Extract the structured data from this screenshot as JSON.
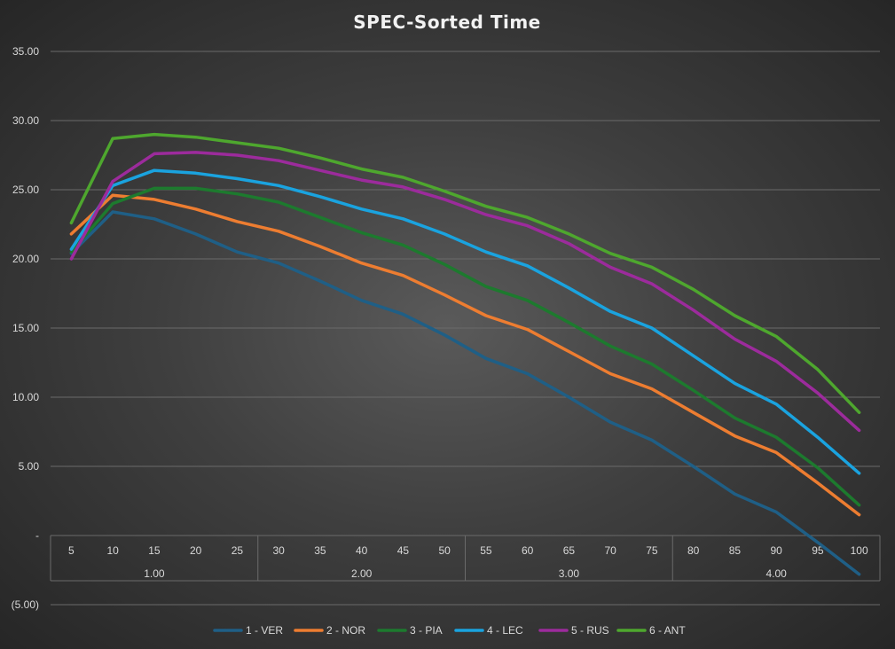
{
  "chart_data": {
    "type": "line",
    "title": "SPEC-Sorted Time",
    "xlabel": "",
    "ylabel": "",
    "ylim": [
      -5,
      35
    ],
    "yticks": [
      -5,
      0,
      5,
      10,
      15,
      20,
      25,
      30,
      35
    ],
    "ytick_labels": [
      "(5.00)",
      "-",
      "5.00",
      "10.00",
      "15.00",
      "20.00",
      "25.00",
      "30.00",
      "35.00"
    ],
    "categories": [
      "5",
      "10",
      "15",
      "20",
      "25",
      "30",
      "35",
      "40",
      "45",
      "50",
      "55",
      "60",
      "65",
      "70",
      "75",
      "80",
      "85",
      "90",
      "95",
      "100"
    ],
    "groups": [
      {
        "label": "1.00",
        "start": 0,
        "end": 4
      },
      {
        "label": "2.00",
        "start": 5,
        "end": 9
      },
      {
        "label": "3.00",
        "start": 10,
        "end": 14
      },
      {
        "label": "4.00",
        "start": 15,
        "end": 19
      }
    ],
    "legend_position": "bottom",
    "series": [
      {
        "name": "1 - VER",
        "color": "#1f5f86",
        "values": [
          20.4,
          23.4,
          22.9,
          21.8,
          20.5,
          19.7,
          18.4,
          17.0,
          16.0,
          14.5,
          12.8,
          11.7,
          10.0,
          8.2,
          6.9,
          5.0,
          3.0,
          1.7,
          -0.5,
          -2.8
        ]
      },
      {
        "name": "2 - NOR",
        "color": "#ed7d31",
        "values": [
          21.8,
          24.6,
          24.3,
          23.6,
          22.7,
          22.0,
          20.9,
          19.7,
          18.8,
          17.4,
          15.9,
          14.9,
          13.3,
          11.7,
          10.6,
          8.9,
          7.2,
          6.0,
          3.8,
          1.5
        ]
      },
      {
        "name": "3 - PIA",
        "color": "#1d7a2e",
        "values": [
          20.5,
          24.0,
          25.1,
          25.1,
          24.7,
          24.1,
          23.0,
          21.9,
          21.0,
          19.6,
          18.0,
          17.0,
          15.4,
          13.7,
          12.4,
          10.5,
          8.5,
          7.1,
          4.9,
          2.2
        ]
      },
      {
        "name": "4 - LEC",
        "color": "#1aa3df",
        "values": [
          20.7,
          25.3,
          26.4,
          26.2,
          25.8,
          25.3,
          24.5,
          23.6,
          22.9,
          21.8,
          20.5,
          19.5,
          17.9,
          16.2,
          15.0,
          13.0,
          11.0,
          9.5,
          7.1,
          4.5
        ]
      },
      {
        "name": "5 - RUS",
        "color": "#9c2b9c",
        "values": [
          20.0,
          25.6,
          27.6,
          27.7,
          27.5,
          27.1,
          26.4,
          25.7,
          25.2,
          24.3,
          23.2,
          22.4,
          21.1,
          19.4,
          18.2,
          16.3,
          14.2,
          12.6,
          10.3,
          7.6
        ]
      },
      {
        "name": "6 - ANT",
        "color": "#4ea72e",
        "values": [
          22.6,
          28.7,
          29.0,
          28.8,
          28.4,
          28.0,
          27.3,
          26.5,
          25.9,
          24.9,
          23.8,
          23.0,
          21.8,
          20.4,
          19.4,
          17.8,
          15.9,
          14.4,
          12.0,
          8.9
        ]
      }
    ]
  }
}
